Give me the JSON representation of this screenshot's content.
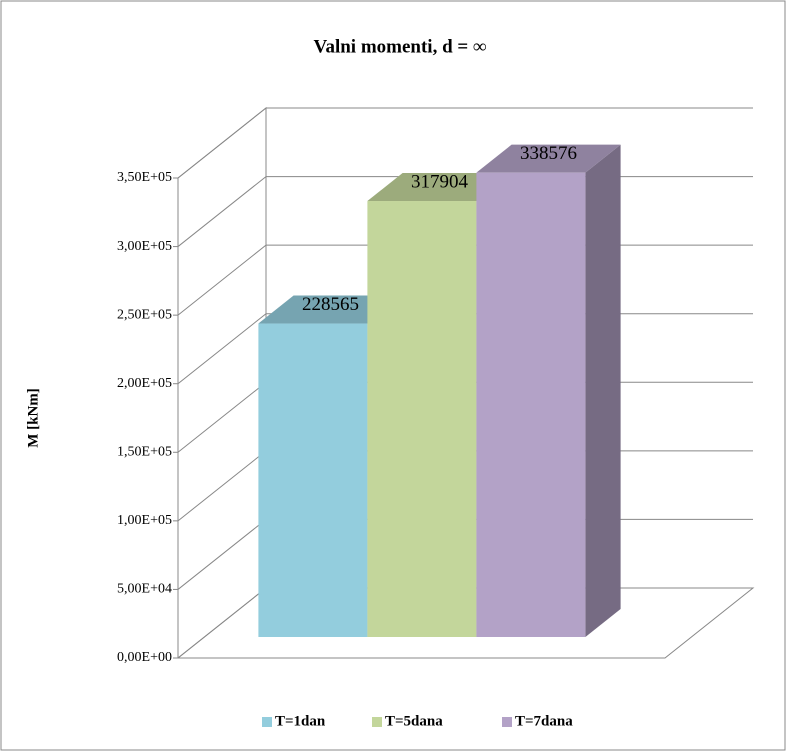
{
  "chart_data": {
    "type": "bar3d",
    "title": "Valni momenti, d = ∞",
    "ylabel": "M [kNm]",
    "categories": [
      null
    ],
    "series": [
      {
        "name": "T=1dan",
        "color": "#93cddd",
        "values": [
          228565
        ]
      },
      {
        "name": "T=5dana",
        "color": "#c3d69b",
        "values": [
          317904
        ]
      },
      {
        "name": "T=7dana",
        "color": "#b3a2c7",
        "values": [
          338576
        ]
      }
    ],
    "ylim": [
      0,
      350000
    ],
    "yticks": [
      {
        "value": 0,
        "label": "0,00E+00"
      },
      {
        "value": 50000,
        "label": "5,00E+04"
      },
      {
        "value": 100000,
        "label": "1,00E+05"
      },
      {
        "value": 150000,
        "label": "1,50E+05"
      },
      {
        "value": 200000,
        "label": "2,00E+05"
      },
      {
        "value": 250000,
        "label": "2,50E+05"
      },
      {
        "value": 300000,
        "label": "3,00E+05"
      },
      {
        "value": 350000,
        "label": "3,50E+05"
      }
    ],
    "grid": true,
    "legend": "bottom"
  }
}
